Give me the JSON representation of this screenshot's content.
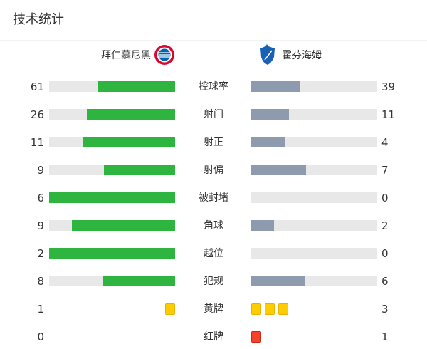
{
  "title": "技术统计",
  "home": {
    "name": "拜仁慕尼黑",
    "logo": "fc-bayern-logo",
    "color": "#dc052d"
  },
  "away": {
    "name": "霍芬海姆",
    "logo": "tsg-hoffenheim-logo",
    "color": "#1961b5"
  },
  "colors": {
    "home_bar": "#2db540",
    "away_bar": "#8e9aae",
    "track": "#e8e8e8",
    "yellow": "#ffcc00",
    "red": "#f44329"
  },
  "stats": [
    {
      "label": "控球率",
      "home": 61,
      "away": 39
    },
    {
      "label": "射门",
      "home": 26,
      "away": 11
    },
    {
      "label": "射正",
      "home": 11,
      "away": 4
    },
    {
      "label": "射偏",
      "home": 9,
      "away": 7
    },
    {
      "label": "被封堵",
      "home": 6,
      "away": 0
    },
    {
      "label": "角球",
      "home": 9,
      "away": 2
    },
    {
      "label": "越位",
      "home": 2,
      "away": 0
    },
    {
      "label": "犯规",
      "home": 8,
      "away": 6
    }
  ],
  "cards": [
    {
      "label": "黄牌",
      "home": 1,
      "away": 3,
      "type": "yellow"
    },
    {
      "label": "红牌",
      "home": 0,
      "away": 1,
      "type": "red"
    }
  ]
}
